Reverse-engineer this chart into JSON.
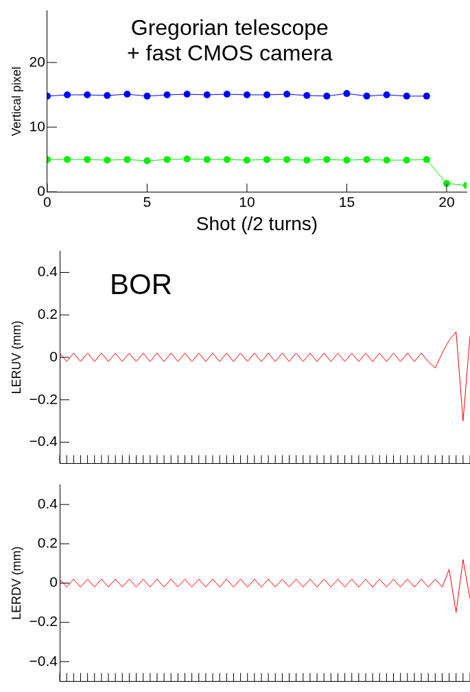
{
  "chart_data": [
    {
      "type": "line",
      "xlabel": "Shot (/2 turns)",
      "ylabel": "Vertical pixel",
      "annotations": [
        "Gregorian telescope\n+ fast CMOS camera"
      ],
      "x": [
        0,
        1,
        2,
        3,
        4,
        5,
        6,
        7,
        8,
        9,
        10,
        11,
        12,
        13,
        14,
        15,
        16,
        17,
        18,
        19,
        20,
        21
      ],
      "series": [
        {
          "color": "#0000ff",
          "values": [
            14.8,
            15,
            15,
            14.9,
            15.1,
            14.8,
            15,
            15.1,
            15,
            15.1,
            15,
            15,
            15.1,
            14.9,
            14.8,
            15.2,
            14.8,
            15,
            14.8,
            14.8,
            null,
            null
          ]
        },
        {
          "color": "#00ee00",
          "values": [
            5,
            5,
            5,
            4.9,
            5,
            4.8,
            5,
            5.1,
            5,
            5,
            4.9,
            5,
            5,
            4.9,
            5,
            4.9,
            5,
            4.9,
            4.9,
            5,
            1.3,
            1
          ]
        }
      ],
      "xlim": [
        0,
        21
      ],
      "ylim": [
        0,
        28
      ],
      "xticks": [
        0,
        5,
        10,
        15,
        20
      ],
      "yticks": [
        0,
        10,
        20
      ],
      "marker": "circle",
      "line_style": "solid",
      "grid": false
    },
    {
      "type": "line",
      "ylabel": "LERUV (mm)",
      "annotations": [
        "BOR"
      ],
      "categories": [
        null,
        null,
        null,
        null,
        null,
        null,
        null,
        null,
        null,
        null,
        null,
        null,
        null,
        null,
        null,
        null,
        null,
        null,
        null,
        null,
        null,
        null,
        null,
        null,
        null,
        null,
        null,
        null,
        null,
        null,
        null,
        null,
        null,
        null,
        null,
        null,
        null,
        null,
        null,
        null,
        null,
        null,
        null,
        null,
        null,
        null,
        null,
        null,
        null,
        null,
        null,
        null,
        null,
        null,
        null,
        null,
        null,
        null,
        null,
        null
      ],
      "series": [
        {
          "color": "#ff0000",
          "values": [
            0.02,
            -0.02,
            0.02,
            -0.02,
            0.02,
            -0.02,
            0.02,
            -0.02,
            0.02,
            -0.02,
            0.02,
            -0.02,
            0.02,
            -0.02,
            0.02,
            -0.02,
            0.02,
            -0.02,
            0.02,
            -0.02,
            0.02,
            -0.02,
            0.02,
            -0.02,
            0.02,
            -0.02,
            0.02,
            -0.02,
            0.02,
            -0.02,
            0.02,
            -0.02,
            0.02,
            -0.02,
            0.02,
            -0.02,
            0.02,
            -0.02,
            0.02,
            -0.02,
            0.02,
            -0.02,
            0.02,
            -0.02,
            0.02,
            -0.02,
            0.02,
            -0.02,
            0.02,
            -0.02,
            0.02,
            -0.02,
            0.02,
            -0.02,
            -0.05,
            0.02,
            0.08,
            0.12,
            -0.3,
            0.1
          ]
        }
      ],
      "ylim": [
        -0.5,
        0.5
      ],
      "yticks": [
        -0.4,
        -0.2,
        0,
        0.2,
        0.4
      ],
      "tick_labels": "y",
      "grid": false
    },
    {
      "type": "line",
      "ylabel": "LERDV (mm)",
      "categories": [
        null,
        null,
        null,
        null,
        null,
        null,
        null,
        null,
        null,
        null,
        null,
        null,
        null,
        null,
        null,
        null,
        null,
        null,
        null,
        null,
        null,
        null,
        null,
        null,
        null,
        null,
        null,
        null,
        null,
        null,
        null,
        null,
        null,
        null,
        null,
        null,
        null,
        null,
        null,
        null,
        null,
        null,
        null,
        null,
        null,
        null,
        null,
        null,
        null,
        null,
        null,
        null,
        null,
        null,
        null,
        null,
        null,
        null,
        null,
        null
      ],
      "series": [
        {
          "color": "#ff0000",
          "values": [
            0.02,
            -0.02,
            0.02,
            -0.02,
            0.02,
            -0.02,
            0.02,
            -0.02,
            0.02,
            -0.02,
            0.02,
            -0.02,
            0.02,
            -0.02,
            0.02,
            -0.02,
            0.02,
            -0.02,
            0.02,
            -0.02,
            0.02,
            -0.02,
            0.02,
            -0.02,
            0.02,
            -0.02,
            0.02,
            -0.02,
            0.02,
            -0.02,
            0.02,
            -0.02,
            0.02,
            -0.02,
            0.02,
            -0.02,
            0.02,
            -0.02,
            0.02,
            -0.02,
            0.02,
            -0.02,
            0.02,
            -0.02,
            0.02,
            -0.02,
            0.02,
            -0.02,
            0.02,
            -0.02,
            0.02,
            -0.02,
            0.02,
            -0.02,
            0.02,
            -0.02,
            0.07,
            -0.15,
            0.12,
            -0.08
          ]
        }
      ],
      "ylim": [
        -0.5,
        0.5
      ],
      "yticks": [
        -0.4,
        -0.2,
        0,
        0.2,
        0.4
      ],
      "tick_labels": "y",
      "grid": false
    }
  ]
}
